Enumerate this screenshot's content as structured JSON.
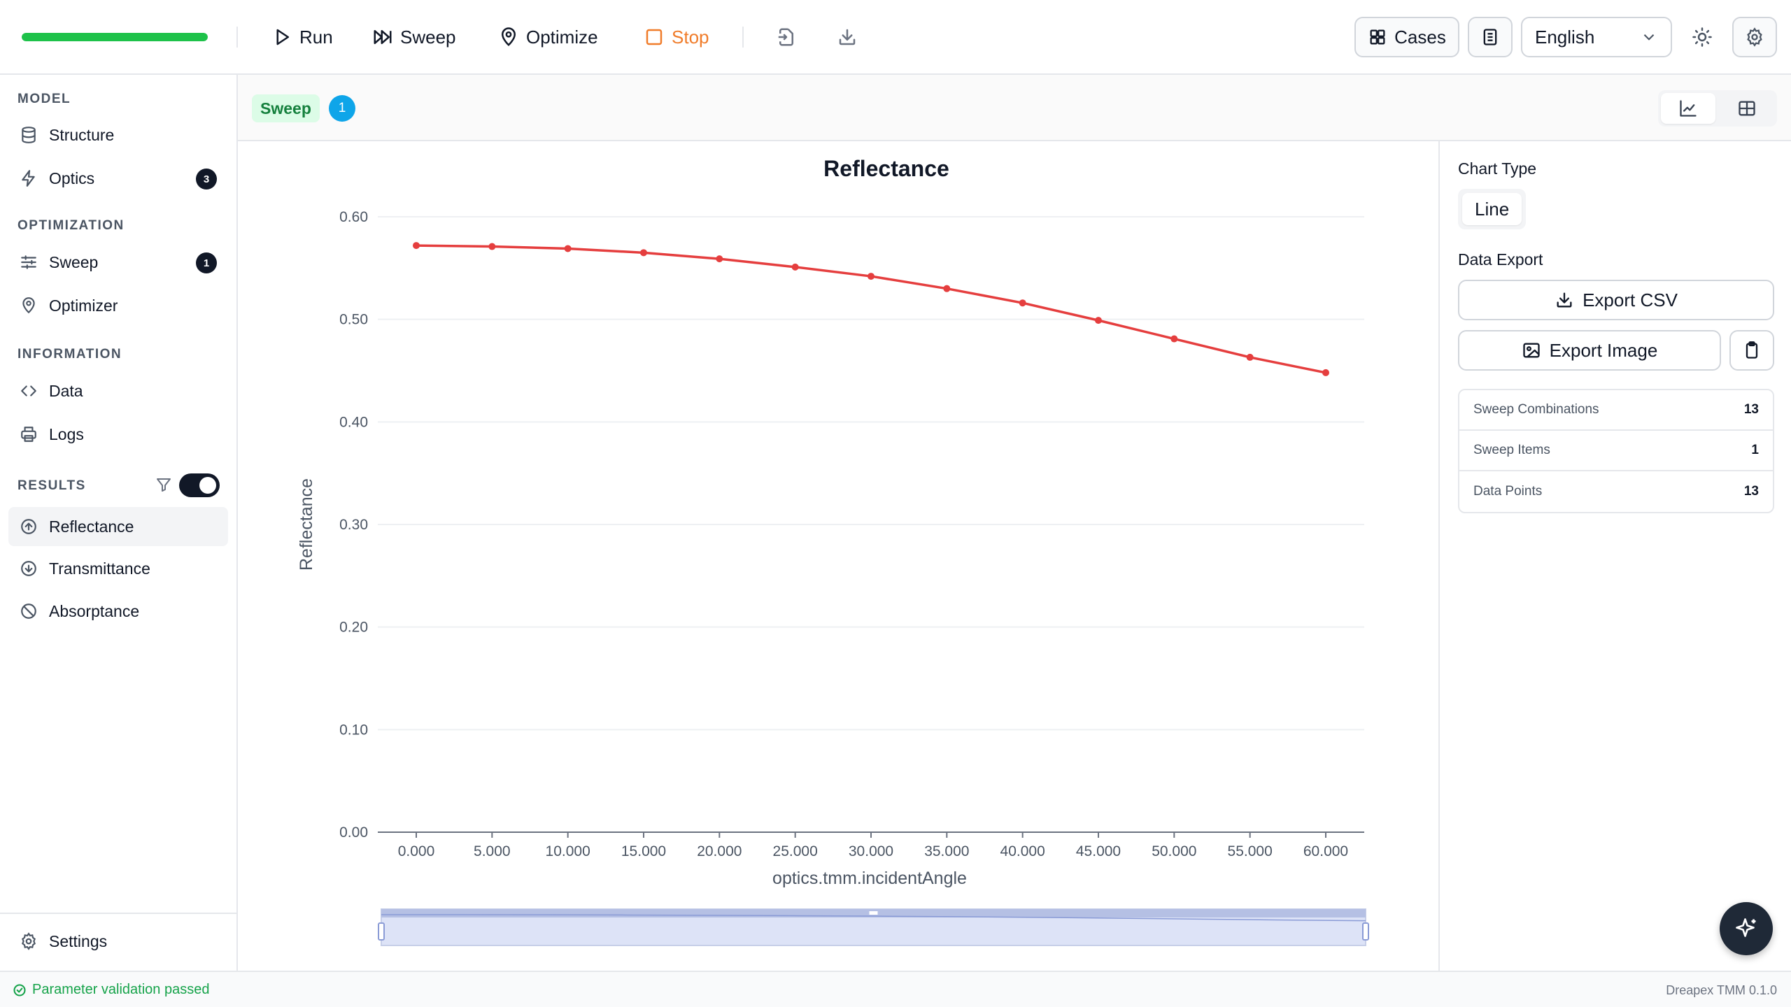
{
  "toolbar": {
    "progress": 1.0,
    "run_label": "Run",
    "sweep_label": "Sweep",
    "optimize_label": "Optimize",
    "stop_label": "Stop",
    "cases_label": "Cases",
    "language": "English"
  },
  "sidebar": {
    "model_label": "MODEL",
    "structure_label": "Structure",
    "optics_label": "Optics",
    "optics_badge": "3",
    "optimization_label": "OPTIMIZATION",
    "sweep_label": "Sweep",
    "sweep_badge": "1",
    "optimizer_label": "Optimizer",
    "information_label": "INFORMATION",
    "data_label": "Data",
    "logs_label": "Logs",
    "results_label": "RESULTS",
    "reflectance_label": "Reflectance",
    "transmittance_label": "Transmittance",
    "absorptance_label": "Absorptance",
    "settings_label": "Settings"
  },
  "results_header": {
    "tag": "Sweep",
    "count": "1"
  },
  "right_panel": {
    "chart_type_label": "Chart Type",
    "chart_type_value": "Line",
    "data_export_label": "Data Export",
    "export_csv_label": "Export CSV",
    "export_image_label": "Export Image",
    "stats": [
      {
        "label": "Sweep Combinations",
        "value": "13"
      },
      {
        "label": "Sweep Items",
        "value": "1"
      },
      {
        "label": "Data Points",
        "value": "13"
      }
    ]
  },
  "status": {
    "message": "Parameter validation passed",
    "version": "Dreapex TMM 0.1.0"
  },
  "colors": {
    "accent_green": "#1ec24a",
    "stop_orange": "#f07c2a",
    "line_red": "#e53e3e",
    "badge_blue": "#0ea5e9"
  },
  "chart_data": {
    "type": "line",
    "title": "Reflectance",
    "xlabel": "optics.tmm.incidentAngle",
    "ylabel": "Reflectance",
    "x": [
      0,
      5,
      10,
      15,
      20,
      25,
      30,
      35,
      40,
      45,
      50,
      55,
      60
    ],
    "x_tick_labels": [
      "0.000",
      "5.000",
      "10.000",
      "15.000",
      "20.000",
      "25.000",
      "30.000",
      "35.000",
      "40.000",
      "45.000",
      "50.000",
      "55.000",
      "60.000"
    ],
    "series": [
      {
        "values": [
          0.572,
          0.571,
          0.569,
          0.565,
          0.559,
          0.551,
          0.542,
          0.53,
          0.516,
          0.499,
          0.481,
          0.463,
          0.448
        ]
      }
    ],
    "ylim": [
      0,
      0.6
    ],
    "y_ticks": [
      "0.00",
      "0.10",
      "0.20",
      "0.30",
      "0.40",
      "0.50",
      "0.60"
    ],
    "grid": true
  }
}
